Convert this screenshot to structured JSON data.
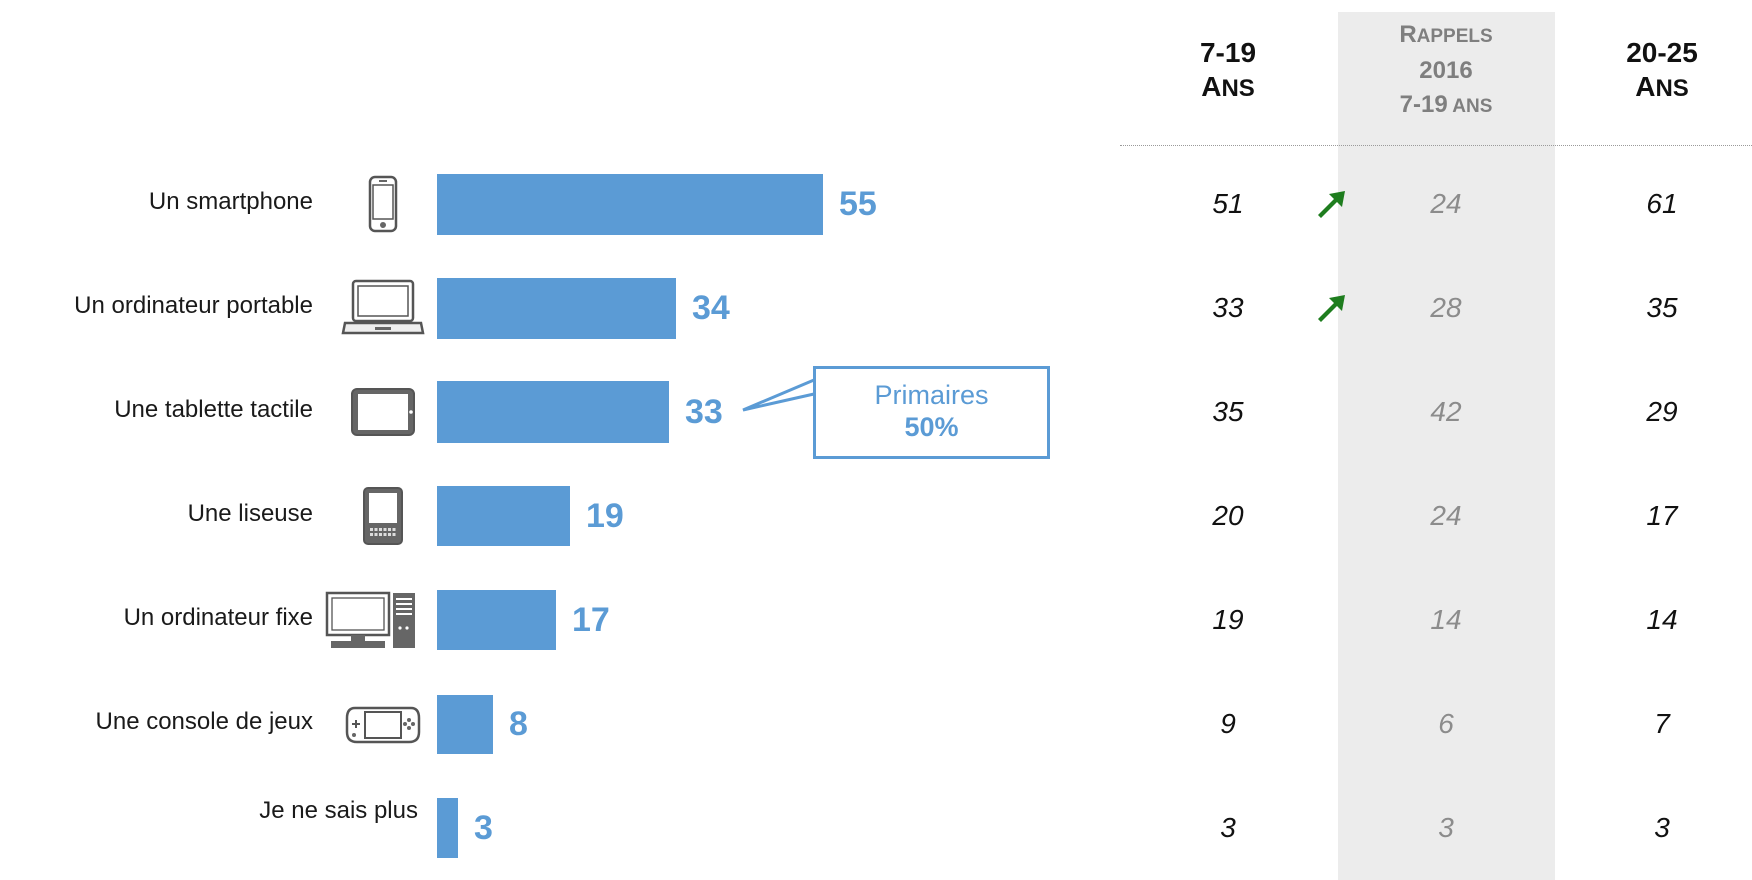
{
  "chart_data": {
    "type": "bar",
    "categories": [
      "Un smartphone",
      "Un ordinateur portable",
      "Une tablette tactile",
      "Une liseuse",
      "Un ordinateur fixe",
      "Une console de jeux",
      "Je ne sais plus"
    ],
    "icons": [
      "smartphone-icon",
      "laptop-icon",
      "tablet-icon",
      "ereader-icon",
      "desktop-computer-icon",
      "game-console-icon",
      null
    ],
    "values": [
      55,
      34,
      33,
      19,
      17,
      8,
      3
    ],
    "orientation": "horizontal",
    "bar_color": "#5b9bd5",
    "value_label_color": "#5b9bd5",
    "callout": {
      "category": "Une tablette tactile",
      "line1": "Primaires",
      "line2": "50%"
    },
    "table": {
      "columns": [
        {
          "head_line1": "7-19",
          "head_line2": "A",
          "head_line2_sc": "NS",
          "head_line3": "",
          "head_line3_sc": ""
        },
        {
          "head_line1": "R",
          "head_line1_sc": "APPELS",
          "head_line2": "2016",
          "head_line2_sc": "",
          "head_line3": "7-19",
          "head_line3_sc": "ANS"
        },
        {
          "head_line1": "20-25",
          "head_line2": "A",
          "head_line2_sc": "NS",
          "head_line3": "",
          "head_line3_sc": ""
        }
      ],
      "rows": [
        [
          51,
          24,
          61
        ],
        [
          33,
          28,
          35
        ],
        [
          35,
          42,
          29
        ],
        [
          20,
          24,
          17
        ],
        [
          19,
          14,
          14
        ],
        [
          9,
          6,
          7
        ],
        [
          3,
          3,
          3
        ]
      ],
      "trend_up_rows": [
        0,
        1
      ],
      "trend_color": "#1e7d1e",
      "recall_band_color": "#ececec"
    }
  }
}
